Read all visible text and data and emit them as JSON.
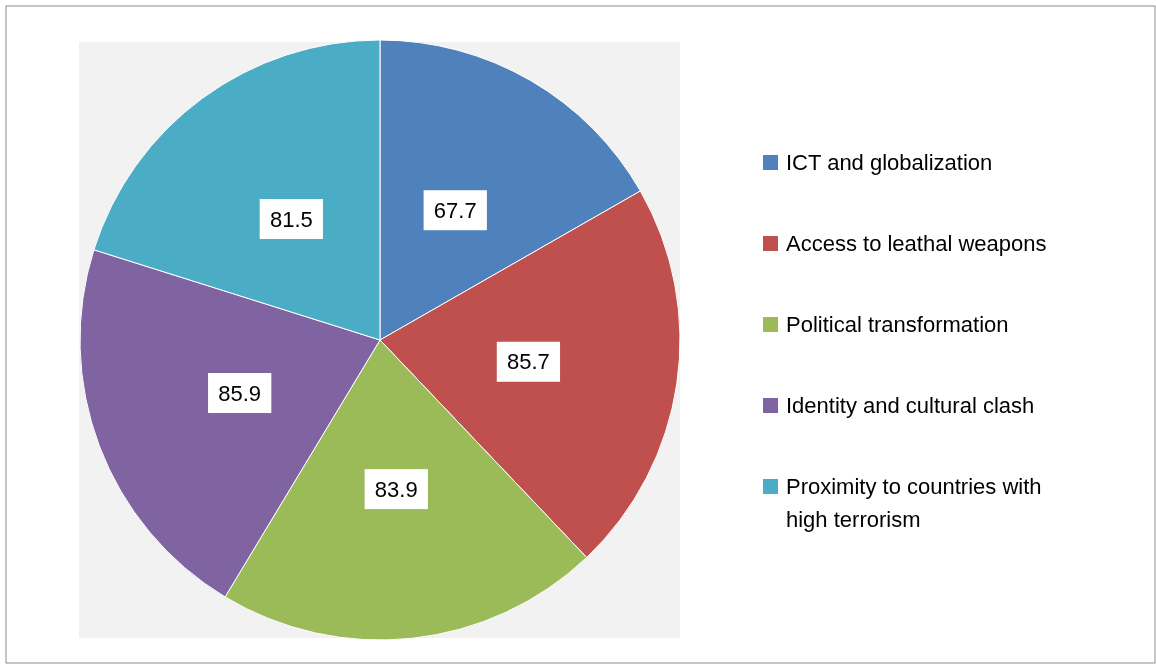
{
  "chart_data": {
    "type": "pie",
    "categories": [
      "ICT and globalization",
      "Access to leathal weapons",
      "Political transformation",
      "Identity and cultural clash",
      "Proximity to countries with high terrorism"
    ],
    "values": [
      67.7,
      85.7,
      83.9,
      85.9,
      81.5
    ],
    "colors": [
      "#4f81bd",
      "#c0504d",
      "#9bbb59",
      "#8064a2",
      "#4bacc6"
    ],
    "data_labels": true,
    "legend": "right"
  }
}
